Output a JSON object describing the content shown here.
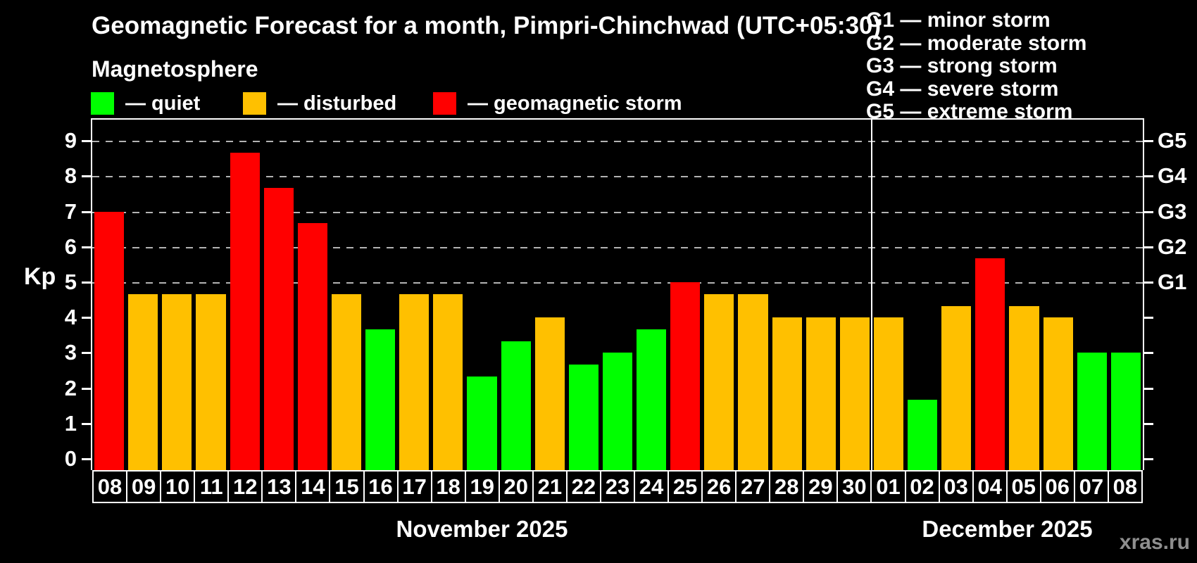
{
  "header": {
    "title": "Geomagnetic Forecast for a month, Pimpri-Chinchwad (UTC+05:30)",
    "subtitle": "Magnetosphere"
  },
  "legend": {
    "items": [
      {
        "label": "— quiet",
        "color": "#00ff00"
      },
      {
        "label": "— disturbed",
        "color": "#ffc000"
      },
      {
        "label": "— geomagnetic storm",
        "color": "#ff0000"
      }
    ]
  },
  "g_legend": {
    "lines": [
      "G1 — minor storm",
      "G2 — moderate storm",
      "G3 — strong storm",
      "G4 — severe storm",
      "G5 — extreme storm"
    ]
  },
  "chart_data": {
    "type": "bar",
    "title": "Geomagnetic Forecast for a month, Pimpri-Chinchwad (UTC+05:30)",
    "ylabel": "Kp",
    "ylim": [
      0,
      9.6
    ],
    "yticks": [
      0,
      1,
      2,
      3,
      4,
      5,
      6,
      7,
      8,
      9
    ],
    "gridlines_kp": [
      5,
      6,
      7,
      8,
      9
    ],
    "grid": "dashed horizontal at storm levels only",
    "right_axis_labels": [
      {
        "kp": 5,
        "label": "G1"
      },
      {
        "kp": 6,
        "label": "G2"
      },
      {
        "kp": 7,
        "label": "G3"
      },
      {
        "kp": 8,
        "label": "G4"
      },
      {
        "kp": 9,
        "label": "G5"
      }
    ],
    "status_colors": {
      "quiet": "#00ff00",
      "disturbed": "#ffc000",
      "storm": "#ff0000"
    },
    "months": [
      {
        "label": "November 2025",
        "days": 23
      },
      {
        "label": "December 2025",
        "days": 8
      }
    ],
    "bars": [
      {
        "day": "08",
        "kp": 7.0,
        "status": "storm"
      },
      {
        "day": "09",
        "kp": 4.67,
        "status": "disturbed"
      },
      {
        "day": "10",
        "kp": 4.67,
        "status": "disturbed"
      },
      {
        "day": "11",
        "kp": 4.67,
        "status": "disturbed"
      },
      {
        "day": "12",
        "kp": 8.67,
        "status": "storm"
      },
      {
        "day": "13",
        "kp": 7.67,
        "status": "storm"
      },
      {
        "day": "14",
        "kp": 6.67,
        "status": "storm"
      },
      {
        "day": "15",
        "kp": 4.67,
        "status": "disturbed"
      },
      {
        "day": "16",
        "kp": 3.67,
        "status": "quiet"
      },
      {
        "day": "17",
        "kp": 4.67,
        "status": "disturbed"
      },
      {
        "day": "18",
        "kp": 4.67,
        "status": "disturbed"
      },
      {
        "day": "19",
        "kp": 2.33,
        "status": "quiet"
      },
      {
        "day": "20",
        "kp": 3.33,
        "status": "quiet"
      },
      {
        "day": "21",
        "kp": 4.0,
        "status": "disturbed"
      },
      {
        "day": "22",
        "kp": 2.67,
        "status": "quiet"
      },
      {
        "day": "23",
        "kp": 3.0,
        "status": "quiet"
      },
      {
        "day": "24",
        "kp": 3.67,
        "status": "quiet"
      },
      {
        "day": "25",
        "kp": 5.0,
        "status": "storm"
      },
      {
        "day": "26",
        "kp": 4.67,
        "status": "disturbed"
      },
      {
        "day": "27",
        "kp": 4.67,
        "status": "disturbed"
      },
      {
        "day": "28",
        "kp": 4.0,
        "status": "disturbed"
      },
      {
        "day": "29",
        "kp": 4.0,
        "status": "disturbed"
      },
      {
        "day": "30",
        "kp": 4.0,
        "status": "disturbed"
      },
      {
        "day": "01",
        "kp": 4.0,
        "status": "disturbed"
      },
      {
        "day": "02",
        "kp": 1.67,
        "status": "quiet"
      },
      {
        "day": "03",
        "kp": 4.33,
        "status": "disturbed"
      },
      {
        "day": "04",
        "kp": 5.67,
        "status": "storm"
      },
      {
        "day": "05",
        "kp": 4.33,
        "status": "disturbed"
      },
      {
        "day": "06",
        "kp": 4.0,
        "status": "disturbed"
      },
      {
        "day": "07",
        "kp": 3.0,
        "status": "quiet"
      },
      {
        "day": "08",
        "kp": 3.0,
        "status": "quiet"
      }
    ]
  },
  "watermark": "xras.ru"
}
